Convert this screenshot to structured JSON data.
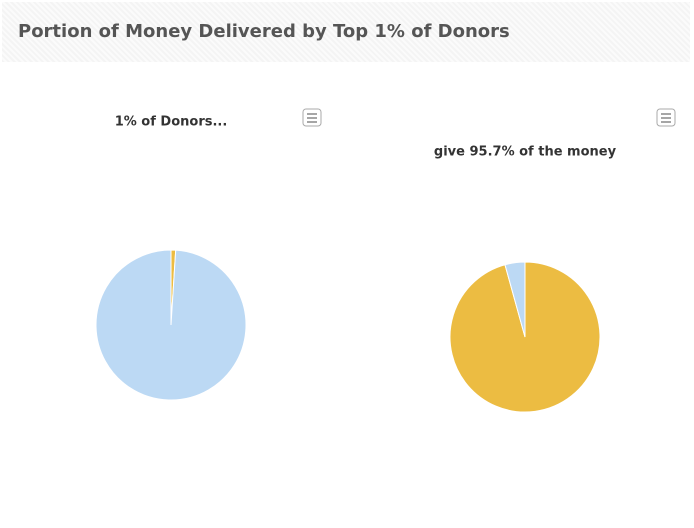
{
  "header": {
    "title": "Portion of Money Delivered by Top 1% of Donors"
  },
  "chart_data": [
    {
      "type": "pie",
      "title": "1% of Donors...",
      "values": [
        1,
        99
      ],
      "colors": [
        "#ecbc42",
        "#bcd9f4"
      ]
    },
    {
      "type": "pie",
      "title": "give 95.7% of the money",
      "values": [
        95.7,
        4.3
      ],
      "colors": [
        "#ecbc42",
        "#bcd9f4"
      ]
    }
  ]
}
